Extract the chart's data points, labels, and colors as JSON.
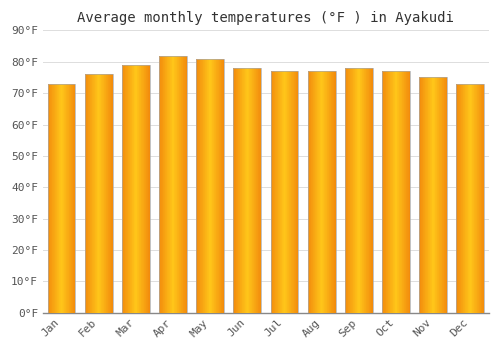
{
  "title": "Average monthly temperatures (°F ) in Ayakudi",
  "months": [
    "Jan",
    "Feb",
    "Mar",
    "Apr",
    "May",
    "Jun",
    "Jul",
    "Aug",
    "Sep",
    "Oct",
    "Nov",
    "Dec"
  ],
  "values": [
    73,
    76,
    79,
    82,
    81,
    78,
    77,
    77,
    78,
    77,
    75,
    73
  ],
  "bar_color_center": "#FFB300",
  "bar_color_edge": "#E08000",
  "ylim": [
    0,
    90
  ],
  "yticks": [
    0,
    10,
    20,
    30,
    40,
    50,
    60,
    70,
    80,
    90
  ],
  "ytick_labels": [
    "0°F",
    "10°F",
    "20°F",
    "30°F",
    "40°F",
    "50°F",
    "60°F",
    "70°F",
    "80°F",
    "90°F"
  ],
  "bg_color": "#FFFFFF",
  "plot_bg_color": "#FFFFFF",
  "grid_color": "#DDDDDD",
  "title_fontsize": 10,
  "tick_fontsize": 8,
  "font_family": "monospace",
  "bar_width": 0.75
}
